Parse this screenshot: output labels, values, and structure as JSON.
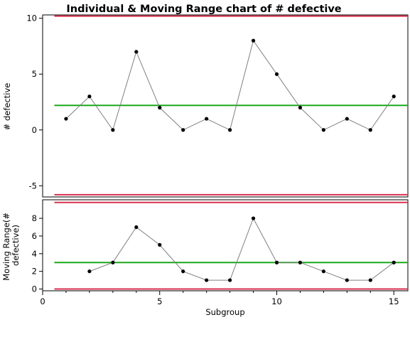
{
  "title": "Individual & Moving Range chart of # defective",
  "colors": {
    "limit": "#d9304f",
    "center": "#1aa81a",
    "series": "#808080",
    "point": "#000000"
  },
  "chart_data": [
    {
      "type": "line",
      "name": "individuals",
      "title": "Individual & Moving Range chart of # defective",
      "ylabel": "# defective",
      "xlabel": "",
      "x": [
        1,
        2,
        3,
        4,
        5,
        6,
        7,
        8,
        9,
        10,
        11,
        12,
        13,
        14,
        15
      ],
      "values": [
        1,
        3,
        0,
        7,
        2,
        0,
        1,
        0,
        8,
        5,
        2,
        0,
        1,
        0,
        3
      ],
      "ucl": 10.2,
      "center": 2.2,
      "lcl": -5.8,
      "xlim": [
        0,
        15.6
      ],
      "ylim": [
        -6,
        10.3
      ],
      "yticks": [
        -5,
        0,
        5,
        10
      ],
      "ytick_labels": [
        "-5",
        "0",
        "5",
        "10"
      ],
      "grid": false
    },
    {
      "type": "line",
      "name": "moving-range",
      "ylabel": "Moving Range(# defective)",
      "ylabel_lines": [
        "Moving Range(#",
        "defective)"
      ],
      "xlabel": "Subgroup",
      "x": [
        2,
        3,
        4,
        5,
        6,
        7,
        8,
        9,
        10,
        11,
        12,
        13,
        14,
        15
      ],
      "values": [
        2,
        3,
        7,
        5,
        2,
        1,
        1,
        8,
        3,
        3,
        2,
        1,
        1,
        3
      ],
      "ucl": 9.8,
      "center": 3.0,
      "lcl": 0,
      "xlim": [
        0,
        15.6
      ],
      "ylim": [
        -0.2,
        10.1
      ],
      "yticks": [
        0,
        2,
        4,
        6,
        8
      ],
      "ytick_labels": [
        "0",
        "2",
        "4",
        "6",
        "8"
      ],
      "xticks": [
        0,
        5,
        10,
        15
      ],
      "xtick_labels": [
        "0",
        "5",
        "10",
        "15"
      ],
      "grid": false
    }
  ]
}
